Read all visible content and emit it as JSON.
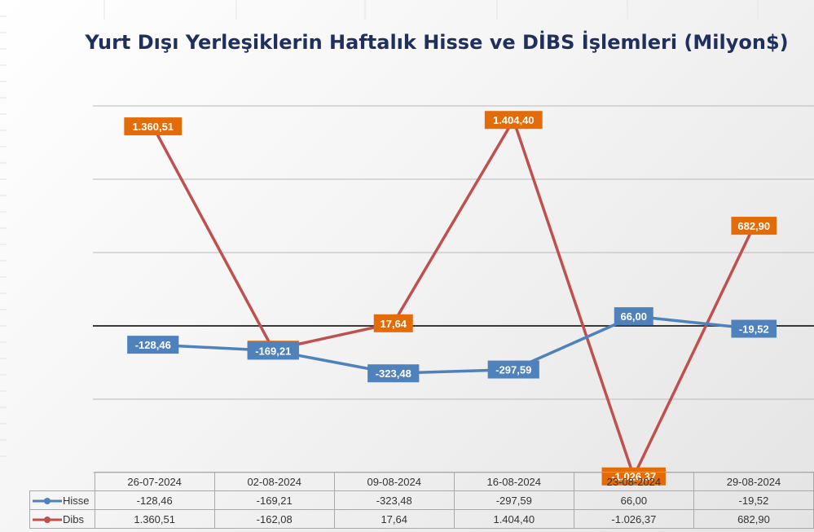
{
  "chart_data": {
    "type": "line",
    "title": "Yurt Dışı Yerleşiklerin Haftalık Hisse ve DİBS İşlemleri (Milyon$)",
    "categories": [
      "26-07-2024",
      "02-08-2024",
      "09-08-2024",
      "16-08-2024",
      "23-08-2024",
      "29-08-2024"
    ],
    "series": [
      {
        "name": "Hisse",
        "color": "#4f81bd",
        "values": [
          -128.46,
          -169.21,
          -323.48,
          -297.59,
          66.0,
          -19.52
        ],
        "labels": [
          "-128,46",
          "-169,21",
          "-323,48",
          "-297,59",
          "66,00",
          "-19,52"
        ]
      },
      {
        "name": "Dibs",
        "color": "#c0504d",
        "label_color": "#e36c09",
        "values": [
          1360.51,
          -162.08,
          17.64,
          1404.4,
          -1026.37,
          682.9
        ],
        "labels": [
          "1.360,51",
          "-162,08",
          "17,64",
          "1.404,40",
          "-1.026,37",
          "682,90"
        ]
      }
    ],
    "ylim": [
      -1000,
      2000
    ],
    "grid": true,
    "legend": "data-table"
  }
}
